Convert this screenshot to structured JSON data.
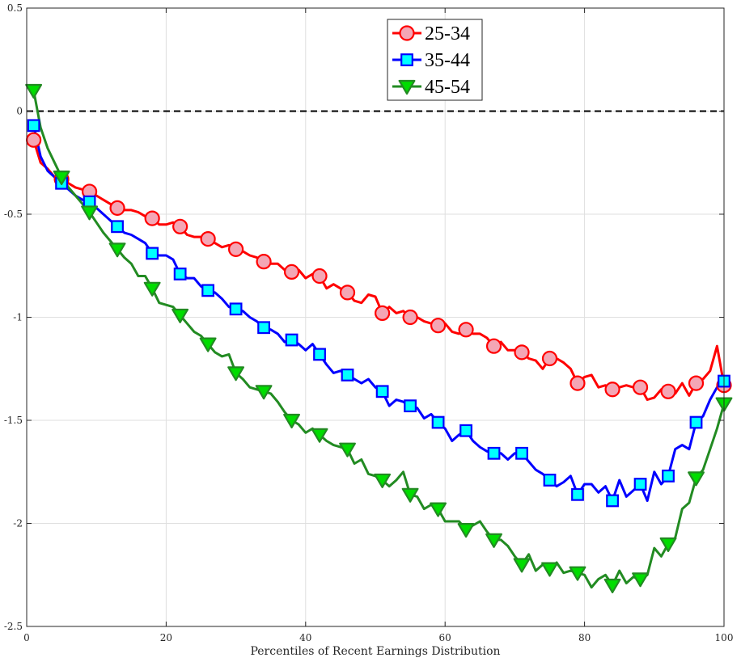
{
  "chart_data": {
    "type": "line",
    "title": "",
    "xlabel": "Percentiles of Recent Earnings Distribution",
    "ylabel": "",
    "xlim": [
      0,
      100
    ],
    "ylim": [
      -2.5,
      0.5
    ],
    "xticks": [
      0,
      20,
      40,
      60,
      80,
      100
    ],
    "yticks": [
      -2.5,
      -2,
      -1.5,
      -1,
      -0.5,
      0,
      0.5
    ],
    "xtick_labels": [
      "0",
      "20",
      "40",
      "60",
      "80",
      "100"
    ],
    "ytick_labels": [
      "-2.5",
      "-2",
      "-1.5",
      "-1",
      "-0.5",
      "0",
      "0.5"
    ],
    "grid": true,
    "reference_line": {
      "y": 0,
      "style": "dashed",
      "color": "#000000"
    },
    "legend": {
      "position": "top-center"
    },
    "series": [
      {
        "name": "25-34",
        "color": "#ff0000",
        "marker": "circle",
        "marker_fill": "#f4a6b5",
        "x": [
          1,
          2,
          3,
          4,
          5,
          6,
          7,
          8,
          9,
          10,
          11,
          12,
          13,
          14,
          15,
          16,
          17,
          18,
          19,
          20,
          21,
          22,
          23,
          24,
          25,
          26,
          27,
          28,
          29,
          30,
          31,
          32,
          33,
          34,
          35,
          36,
          37,
          38,
          39,
          40,
          41,
          42,
          43,
          44,
          45,
          46,
          47,
          48,
          49,
          50,
          51,
          52,
          53,
          54,
          55,
          56,
          57,
          58,
          59,
          60,
          61,
          62,
          63,
          64,
          65,
          66,
          67,
          68,
          69,
          70,
          71,
          72,
          73,
          74,
          75,
          76,
          77,
          78,
          79,
          80,
          81,
          82,
          83,
          84,
          85,
          86,
          87,
          88,
          89,
          90,
          91,
          92,
          93,
          94,
          95,
          96,
          97,
          98,
          99,
          100
        ],
        "y": [
          -0.14,
          -0.25,
          -0.28,
          -0.32,
          -0.33,
          -0.35,
          -0.37,
          -0.38,
          -0.39,
          -0.41,
          -0.43,
          -0.45,
          -0.47,
          -0.48,
          -0.48,
          -0.49,
          -0.51,
          -0.52,
          -0.55,
          -0.55,
          -0.54,
          -0.56,
          -0.6,
          -0.61,
          -0.61,
          -0.62,
          -0.64,
          -0.66,
          -0.65,
          -0.67,
          -0.68,
          -0.7,
          -0.71,
          -0.73,
          -0.74,
          -0.74,
          -0.77,
          -0.78,
          -0.77,
          -0.81,
          -0.79,
          -0.8,
          -0.86,
          -0.84,
          -0.86,
          -0.88,
          -0.92,
          -0.93,
          -0.89,
          -0.9,
          -0.98,
          -0.95,
          -0.98,
          -0.97,
          -1.0,
          -1.0,
          -1.02,
          -1.03,
          -1.04,
          -1.03,
          -1.07,
          -1.08,
          -1.06,
          -1.08,
          -1.08,
          -1.1,
          -1.14,
          -1.12,
          -1.16,
          -1.16,
          -1.17,
          -1.2,
          -1.21,
          -1.25,
          -1.2,
          -1.2,
          -1.22,
          -1.25,
          -1.32,
          -1.29,
          -1.28,
          -1.34,
          -1.33,
          -1.35,
          -1.34,
          -1.33,
          -1.34,
          -1.34,
          -1.4,
          -1.39,
          -1.35,
          -1.36,
          -1.37,
          -1.32,
          -1.38,
          -1.32,
          -1.3,
          -1.26,
          -1.14,
          -1.33
        ]
      },
      {
        "name": "35-44",
        "color": "#0000ff",
        "marker": "square",
        "marker_fill": "#00ffff",
        "x": [
          1,
          2,
          3,
          4,
          5,
          6,
          7,
          8,
          9,
          10,
          11,
          12,
          13,
          14,
          15,
          16,
          17,
          18,
          19,
          20,
          21,
          22,
          23,
          24,
          25,
          26,
          27,
          28,
          29,
          30,
          31,
          32,
          33,
          34,
          35,
          36,
          37,
          38,
          39,
          40,
          41,
          42,
          43,
          44,
          45,
          46,
          47,
          48,
          49,
          50,
          51,
          52,
          53,
          54,
          55,
          56,
          57,
          58,
          59,
          60,
          61,
          62,
          63,
          64,
          65,
          66,
          67,
          68,
          69,
          70,
          71,
          72,
          73,
          74,
          75,
          76,
          77,
          78,
          79,
          80,
          81,
          82,
          83,
          84,
          85,
          86,
          87,
          88,
          89,
          90,
          91,
          92,
          93,
          94,
          95,
          96,
          97,
          98,
          99,
          100
        ],
        "y": [
          -0.07,
          -0.22,
          -0.29,
          -0.32,
          -0.35,
          -0.38,
          -0.41,
          -0.43,
          -0.44,
          -0.47,
          -0.5,
          -0.53,
          -0.56,
          -0.59,
          -0.6,
          -0.62,
          -0.64,
          -0.69,
          -0.7,
          -0.7,
          -0.72,
          -0.79,
          -0.81,
          -0.81,
          -0.85,
          -0.87,
          -0.88,
          -0.91,
          -0.95,
          -0.96,
          -0.97,
          -1.0,
          -1.02,
          -1.05,
          -1.06,
          -1.08,
          -1.12,
          -1.11,
          -1.13,
          -1.16,
          -1.13,
          -1.18,
          -1.23,
          -1.27,
          -1.26,
          -1.28,
          -1.3,
          -1.32,
          -1.3,
          -1.34,
          -1.36,
          -1.43,
          -1.4,
          -1.41,
          -1.43,
          -1.44,
          -1.49,
          -1.47,
          -1.51,
          -1.54,
          -1.6,
          -1.57,
          -1.55,
          -1.6,
          -1.63,
          -1.65,
          -1.66,
          -1.66,
          -1.69,
          -1.66,
          -1.66,
          -1.7,
          -1.74,
          -1.76,
          -1.79,
          -1.82,
          -1.8,
          -1.77,
          -1.86,
          -1.81,
          -1.81,
          -1.85,
          -1.82,
          -1.89,
          -1.79,
          -1.87,
          -1.84,
          -1.81,
          -1.89,
          -1.75,
          -1.81,
          -1.77,
          -1.64,
          -1.62,
          -1.64,
          -1.51,
          -1.48,
          -1.4,
          -1.34,
          -1.31
        ]
      },
      {
        "name": "45-54",
        "color": "#228b22",
        "marker": "triangle-down",
        "marker_fill": "#00dd00",
        "x": [
          1,
          2,
          3,
          4,
          5,
          6,
          7,
          8,
          9,
          10,
          11,
          12,
          13,
          14,
          15,
          16,
          17,
          18,
          19,
          20,
          21,
          22,
          23,
          24,
          25,
          26,
          27,
          28,
          29,
          30,
          31,
          32,
          33,
          34,
          35,
          36,
          37,
          38,
          39,
          40,
          41,
          42,
          43,
          44,
          45,
          46,
          47,
          48,
          49,
          50,
          51,
          52,
          53,
          54,
          55,
          56,
          57,
          58,
          59,
          60,
          61,
          62,
          63,
          64,
          65,
          66,
          67,
          68,
          69,
          70,
          71,
          72,
          73,
          74,
          75,
          76,
          77,
          78,
          79,
          80,
          81,
          82,
          83,
          84,
          85,
          86,
          87,
          88,
          89,
          90,
          91,
          92,
          93,
          94,
          95,
          96,
          97,
          98,
          99,
          100
        ],
        "y": [
          0.1,
          -0.08,
          -0.18,
          -0.25,
          -0.32,
          -0.37,
          -0.41,
          -0.45,
          -0.49,
          -0.54,
          -0.59,
          -0.63,
          -0.67,
          -0.71,
          -0.74,
          -0.8,
          -0.8,
          -0.86,
          -0.93,
          -0.94,
          -0.95,
          -0.99,
          -1.03,
          -1.07,
          -1.09,
          -1.13,
          -1.17,
          -1.19,
          -1.18,
          -1.27,
          -1.3,
          -1.34,
          -1.35,
          -1.36,
          -1.37,
          -1.41,
          -1.46,
          -1.5,
          -1.52,
          -1.56,
          -1.54,
          -1.57,
          -1.6,
          -1.62,
          -1.63,
          -1.64,
          -1.71,
          -1.69,
          -1.76,
          -1.77,
          -1.79,
          -1.82,
          -1.79,
          -1.75,
          -1.86,
          -1.87,
          -1.93,
          -1.91,
          -1.93,
          -1.99,
          -1.99,
          -1.99,
          -2.03,
          -2.01,
          -1.99,
          -2.04,
          -2.08,
          -2.08,
          -2.11,
          -2.16,
          -2.2,
          -2.15,
          -2.23,
          -2.2,
          -2.22,
          -2.19,
          -2.24,
          -2.23,
          -2.24,
          -2.25,
          -2.31,
          -2.27,
          -2.25,
          -2.3,
          -2.23,
          -2.29,
          -2.26,
          -2.27,
          -2.25,
          -2.12,
          -2.16,
          -2.1,
          -2.07,
          -1.93,
          -1.9,
          -1.78,
          -1.74,
          -1.64,
          -1.54,
          -1.42
        ]
      }
    ]
  }
}
